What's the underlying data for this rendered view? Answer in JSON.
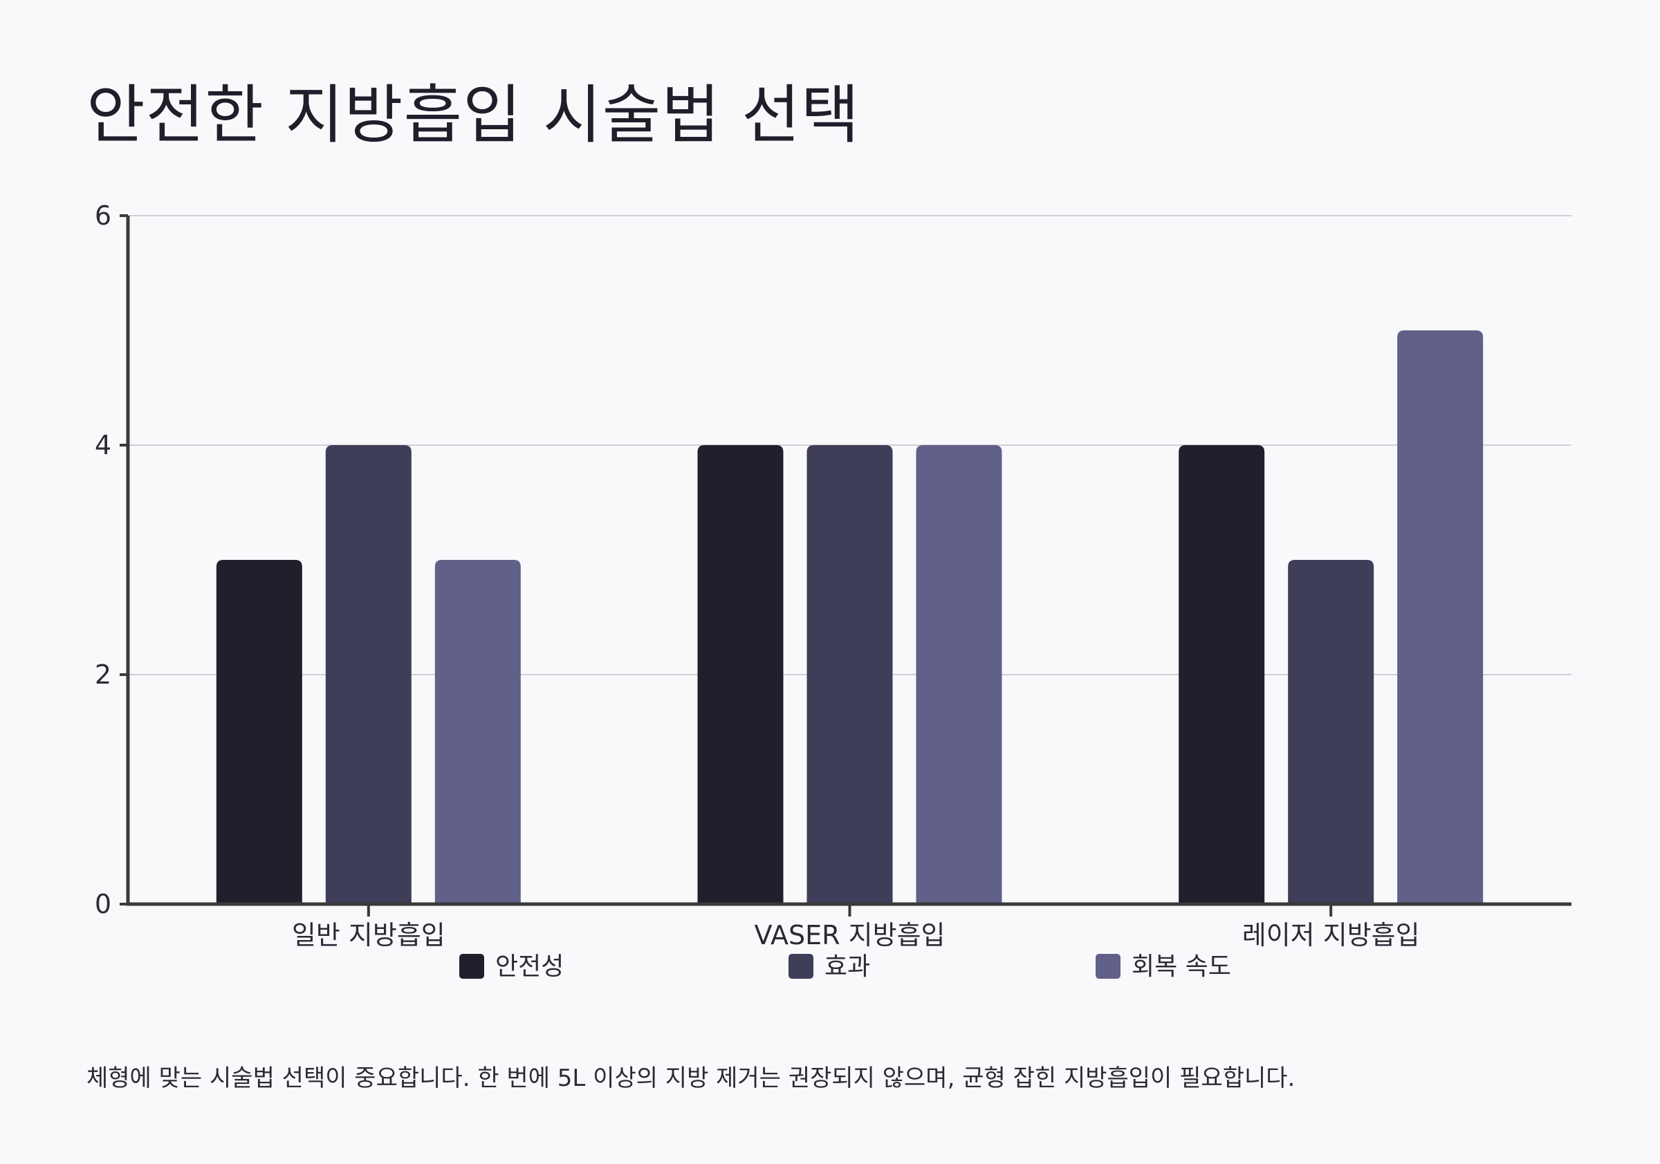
{
  "title": "안전한 지방흡입 시술법 선택",
  "note": "체형에 맞는 시술법 선택이 중요합니다. 한 번에 5L 이상의 지방 제거는 권장되지 않으며, 균형 잡힌 지방흡입이 필요합니다.",
  "chart_data": {
    "type": "bar",
    "title": "안전한 지방흡입 시술법 선택",
    "xlabel": "",
    "ylabel": "",
    "categories": [
      "일반 지방흡입",
      "VASER 지방흡입",
      "레이저 지방흡입"
    ],
    "series": [
      {
        "name": "안전성",
        "values": [
          3,
          4,
          4
        ],
        "color": "#20202d"
      },
      {
        "name": "효과",
        "values": [
          4,
          4,
          3
        ],
        "color": "#3e3e58"
      },
      {
        "name": "회복 속도",
        "values": [
          3,
          4,
          5
        ],
        "color": "#616088"
      }
    ],
    "ylim": [
      0,
      6
    ],
    "yticks": [
      "0",
      "2",
      "4",
      "6"
    ],
    "grid": true,
    "legend": "bottom"
  }
}
